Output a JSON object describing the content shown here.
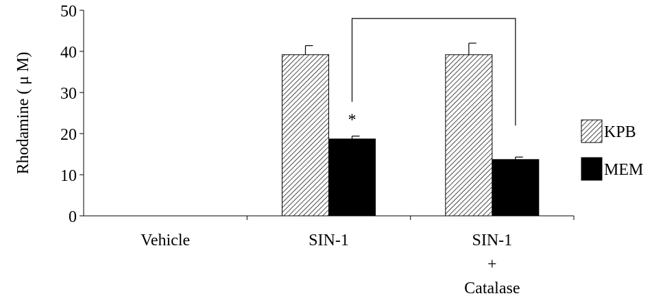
{
  "chart_data": {
    "type": "bar",
    "ylabel": "Rhodamine ( μ M)",
    "ylim": [
      0,
      50
    ],
    "yticks": [
      "0",
      "10",
      "20",
      "30",
      "40",
      "50"
    ],
    "categories": [
      {
        "lines": [
          "Vehicle"
        ]
      },
      {
        "lines": [
          "SIN-1"
        ]
      },
      {
        "lines": [
          "SIN-1",
          "+",
          "Catalase"
        ]
      }
    ],
    "series": [
      {
        "name": "KPB",
        "values": [
          0,
          39.2,
          39.2
        ],
        "errors": [
          0,
          2.2,
          2.8
        ],
        "fill": "hatched"
      },
      {
        "name": "MEM",
        "values": [
          0,
          18.7,
          13.7
        ],
        "errors": [
          0,
          0.7,
          0.6
        ],
        "fill": "#000000"
      }
    ],
    "annotations": [
      {
        "text": "*",
        "category_index": 1,
        "series_index": 1
      }
    ],
    "significance_bracket": {
      "from_category": 1,
      "to_category": 2,
      "series_index": 1
    },
    "legend": {
      "position": "right"
    },
    "grid": false
  }
}
